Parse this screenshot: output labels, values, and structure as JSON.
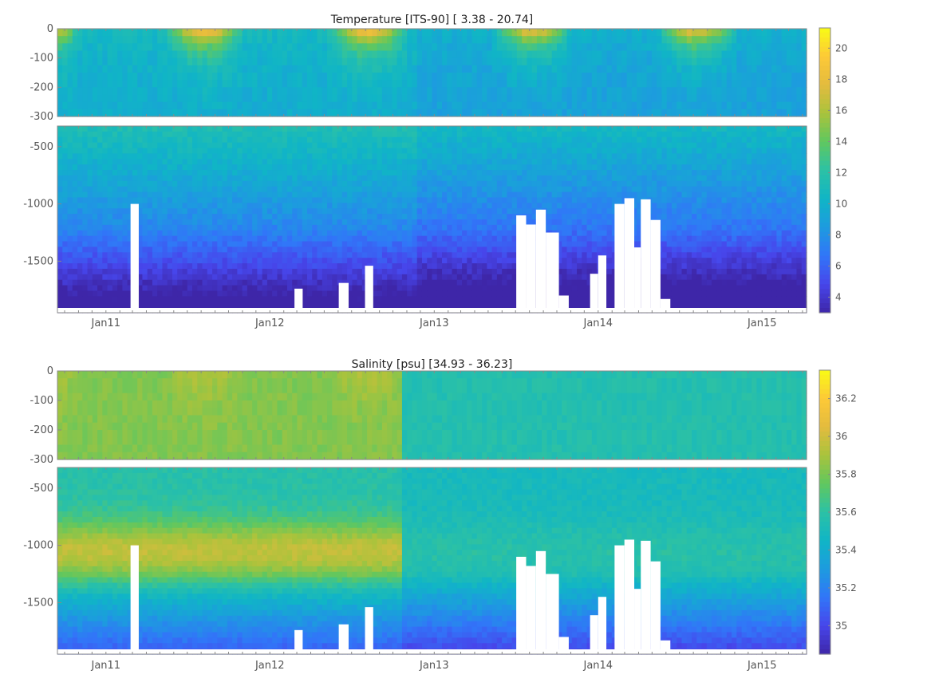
{
  "chart_data": [
    {
      "type": "heatmap",
      "title": "Temperature [ITS-90]   [ 3.38 - 20.74]",
      "x_tick_labels": [
        "Jan11",
        "Jan12",
        "Jan13",
        "Jan14",
        "Jan15"
      ],
      "x_range": [
        "2010-09-15",
        "2015-04-10"
      ],
      "upper_panel": {
        "ylim": [
          -300,
          0
        ],
        "y_ticks": [
          0,
          -100,
          -200,
          -300
        ]
      },
      "lower_panel": {
        "ylim": [
          -1950,
          -320
        ],
        "y_ticks": [
          -500,
          -1000,
          -1500
        ]
      },
      "value_range": [
        3.38,
        20.74
      ],
      "colorbar": {
        "range": [
          3,
          21.3
        ],
        "ticks": [
          4,
          6,
          8,
          10,
          12,
          14,
          16,
          18,
          20
        ]
      },
      "colormap": [
        "#3e26a8",
        "#4746eb",
        "#3176f8",
        "#1d9bdf",
        "#10b5c6",
        "#2cc1a5",
        "#60c75f",
        "#a9c33c",
        "#e4bb3e",
        "#fdc937",
        "#f9fb15"
      ]
    },
    {
      "type": "heatmap",
      "title": "Salinity [psu]   [34.93 - 36.23]",
      "x_tick_labels": [
        "Jan11",
        "Jan12",
        "Jan13",
        "Jan14",
        "Jan15"
      ],
      "x_range": [
        "2010-09-15",
        "2015-04-10"
      ],
      "upper_panel": {
        "ylim": [
          -300,
          0
        ],
        "y_ticks": [
          0,
          -100,
          -200,
          -300
        ]
      },
      "lower_panel": {
        "ylim": [
          -1950,
          -320
        ],
        "y_ticks": [
          -500,
          -1000,
          -1500
        ]
      },
      "value_range": [
        34.93,
        36.23
      ],
      "colorbar": {
        "range": [
          34.85,
          36.35
        ],
        "ticks": [
          35,
          35.2,
          35.4,
          35.6,
          35.8,
          36,
          36.2
        ]
      },
      "colormap": [
        "#3e26a8",
        "#4746eb",
        "#3176f8",
        "#1d9bdf",
        "#10b5c6",
        "#2cc1a5",
        "#60c75f",
        "#a9c33c",
        "#e4bb3e",
        "#fdc937",
        "#f9fb15"
      ]
    }
  ]
}
